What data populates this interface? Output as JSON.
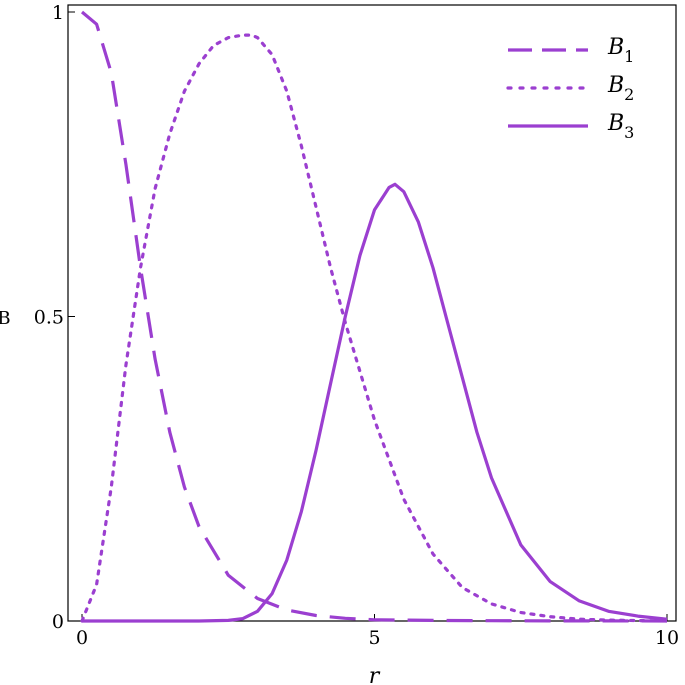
{
  "chart_data": {
    "type": "line",
    "title": "",
    "xlabel": "r",
    "ylabel": "B",
    "xlim": [
      0,
      10
    ],
    "ylim": [
      0,
      1
    ],
    "x_ticks": [
      "0",
      "5",
      "10"
    ],
    "y_ticks": [
      "0",
      "0.5",
      "1"
    ],
    "grid": false,
    "legend_position": "top-right",
    "series_color": "#9B3FD0",
    "series": [
      {
        "name": "B",
        "subscript": "1",
        "style": "dashed",
        "x": [
          0,
          0.25,
          0.5,
          0.75,
          1.0,
          1.25,
          1.5,
          1.75,
          2.0,
          2.5,
          3.0,
          3.5,
          4.0,
          4.5,
          5.0,
          6.0,
          7.0,
          8.0,
          9.0,
          10.0
        ],
        "y": [
          1.0,
          0.98,
          0.9,
          0.75,
          0.58,
          0.43,
          0.31,
          0.22,
          0.155,
          0.075,
          0.037,
          0.018,
          0.009,
          0.0045,
          0.002,
          0.001,
          0.0005,
          0.0002,
          0.0001,
          0.0
        ]
      },
      {
        "name": "B",
        "subscript": "2",
        "style": "dotted",
        "x": [
          0,
          0.25,
          0.5,
          0.75,
          1.0,
          1.25,
          1.5,
          1.75,
          2.0,
          2.25,
          2.5,
          2.75,
          2.9,
          3.0,
          3.25,
          3.5,
          3.75,
          4.0,
          4.25,
          4.5,
          5.0,
          5.5,
          6.0,
          6.5,
          7.0,
          7.5,
          8.0,
          8.5,
          9.0,
          10.0
        ],
        "y": [
          0.0,
          0.06,
          0.22,
          0.42,
          0.58,
          0.71,
          0.8,
          0.87,
          0.915,
          0.945,
          0.958,
          0.962,
          0.962,
          0.958,
          0.93,
          0.87,
          0.78,
          0.68,
          0.58,
          0.49,
          0.33,
          0.2,
          0.11,
          0.055,
          0.028,
          0.014,
          0.007,
          0.003,
          0.0015,
          0.0
        ]
      },
      {
        "name": "B",
        "subscript": "3",
        "style": "solid",
        "x": [
          0,
          1.0,
          2.0,
          2.5,
          2.75,
          3.0,
          3.25,
          3.5,
          3.75,
          4.0,
          4.25,
          4.5,
          4.75,
          5.0,
          5.25,
          5.35,
          5.5,
          5.75,
          6.0,
          6.25,
          6.5,
          6.75,
          7.0,
          7.5,
          8.0,
          8.5,
          9.0,
          9.5,
          10.0
        ],
        "y": [
          0.0,
          0.0,
          0.0,
          0.001,
          0.004,
          0.016,
          0.045,
          0.1,
          0.18,
          0.28,
          0.39,
          0.5,
          0.6,
          0.675,
          0.712,
          0.717,
          0.705,
          0.655,
          0.58,
          0.49,
          0.4,
          0.31,
          0.235,
          0.125,
          0.065,
          0.033,
          0.016,
          0.008,
          0.003
        ]
      }
    ]
  }
}
